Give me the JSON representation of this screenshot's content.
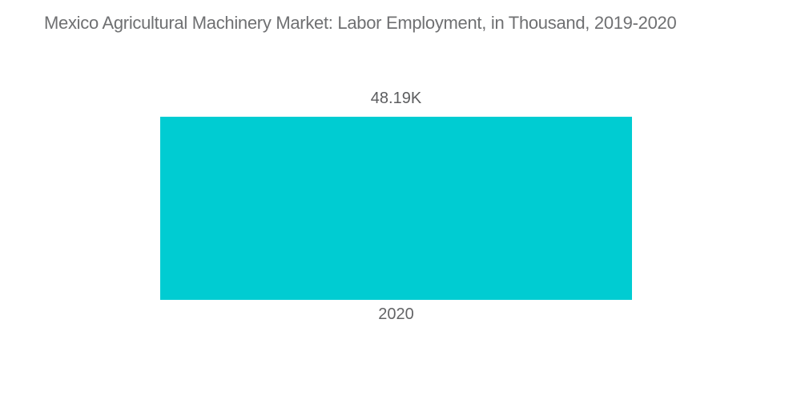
{
  "chart_data": {
    "type": "bar",
    "title": "Mexico Agricultural Machinery Market: Labor Employment, in Thousand, 2019-2020",
    "categories": [
      "2020"
    ],
    "values": [
      48.19
    ],
    "value_labels": [
      "48.19K"
    ],
    "unit": "Thousand",
    "xlabel": "",
    "ylabel": "",
    "ylim": [
      0,
      48.19
    ],
    "grid": false,
    "legend": false,
    "bar_color": "#00CCD2",
    "background_color": "#FFFFFF",
    "title_color": "#6F7072",
    "label_color": "#5C5D5F"
  }
}
